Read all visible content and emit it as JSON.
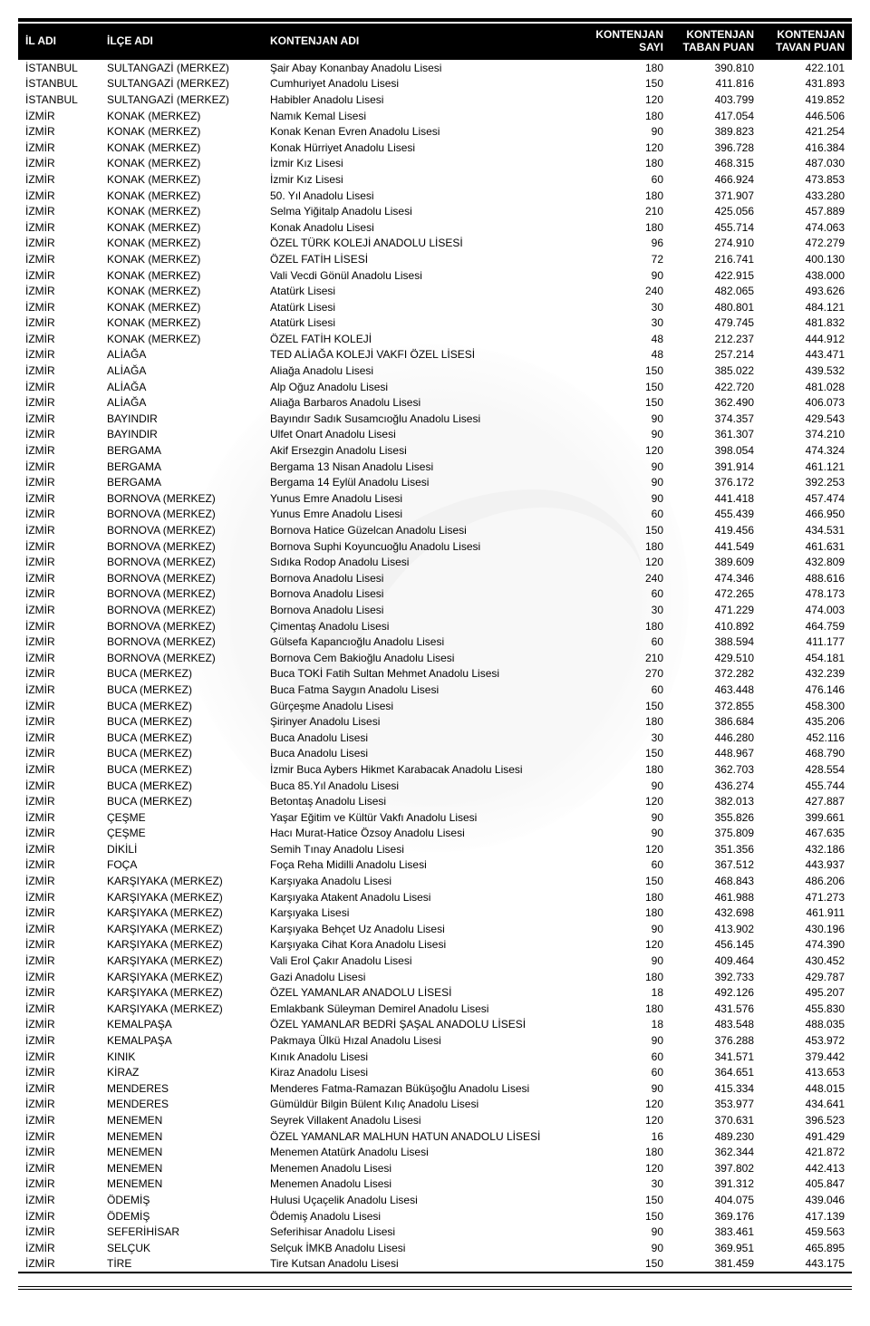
{
  "columns": {
    "il": "İL ADI",
    "ilce": "İLÇE ADI",
    "kon": "KONTENJAN ADI",
    "sayi": "KONTENJAN\nSAYI",
    "taban": "KONTENJAN\nTABAN PUAN",
    "tavan": "KONTENJAN\nTAVAN PUAN"
  },
  "rows": [
    [
      "İSTANBUL",
      "SULTANGAZİ (MERKEZ)",
      "Şair Abay Konanbay Anadolu Lisesi",
      "180",
      "390.810",
      "422.101"
    ],
    [
      "İSTANBUL",
      "SULTANGAZİ (MERKEZ)",
      "Cumhuriyet Anadolu Lisesi",
      "150",
      "411.816",
      "431.893"
    ],
    [
      "İSTANBUL",
      "SULTANGAZİ (MERKEZ)",
      "Habibler Anadolu Lisesi",
      "120",
      "403.799",
      "419.852"
    ],
    [
      "İZMİR",
      "KONAK (MERKEZ)",
      "Namık Kemal Lisesi",
      "180",
      "417.054",
      "446.506"
    ],
    [
      "İZMİR",
      "KONAK (MERKEZ)",
      "Konak Kenan Evren Anadolu Lisesi",
      "90",
      "389.823",
      "421.254"
    ],
    [
      "İZMİR",
      "KONAK (MERKEZ)",
      "Konak Hürriyet Anadolu Lisesi",
      "120",
      "396.728",
      "416.384"
    ],
    [
      "İZMİR",
      "KONAK (MERKEZ)",
      "İzmir Kız Lisesi",
      "180",
      "468.315",
      "487.030"
    ],
    [
      "İZMİR",
      "KONAK (MERKEZ)",
      "İzmir Kız Lisesi",
      "60",
      "466.924",
      "473.853"
    ],
    [
      "İZMİR",
      "KONAK (MERKEZ)",
      "50. Yıl Anadolu Lisesi",
      "180",
      "371.907",
      "433.280"
    ],
    [
      "İZMİR",
      "KONAK (MERKEZ)",
      "Selma Yiğitalp Anadolu Lisesi",
      "210",
      "425.056",
      "457.889"
    ],
    [
      "İZMİR",
      "KONAK (MERKEZ)",
      "Konak Anadolu Lisesi",
      "180",
      "455.714",
      "474.063"
    ],
    [
      "İZMİR",
      "KONAK (MERKEZ)",
      "ÖZEL TÜRK  KOLEJİ ANADOLU LİSESİ",
      "96",
      "274.910",
      "472.279"
    ],
    [
      "İZMİR",
      "KONAK (MERKEZ)",
      "ÖZEL  FATİH LİSESİ",
      "72",
      "216.741",
      "400.130"
    ],
    [
      "İZMİR",
      "KONAK (MERKEZ)",
      "Vali Vecdi Gönül Anadolu Lisesi",
      "90",
      "422.915",
      "438.000"
    ],
    [
      "İZMİR",
      "KONAK (MERKEZ)",
      "Atatürk Lisesi",
      "240",
      "482.065",
      "493.626"
    ],
    [
      "İZMİR",
      "KONAK (MERKEZ)",
      "Atatürk Lisesi",
      "30",
      "480.801",
      "484.121"
    ],
    [
      "İZMİR",
      "KONAK (MERKEZ)",
      "Atatürk Lisesi",
      "30",
      "479.745",
      "481.832"
    ],
    [
      "İZMİR",
      "KONAK (MERKEZ)",
      "ÖZEL FATİH KOLEJİ",
      "48",
      "212.237",
      "444.912"
    ],
    [
      "İZMİR",
      "ALİAĞA",
      "TED ALİAĞA KOLEJİ VAKFI ÖZEL LİSESİ",
      "48",
      "257.214",
      "443.471"
    ],
    [
      "İZMİR",
      "ALİAĞA",
      "Aliağa Anadolu Lisesi",
      "150",
      "385.022",
      "439.532"
    ],
    [
      "İZMİR",
      "ALİAĞA",
      "Alp Oğuz Anadolu Lisesi",
      "150",
      "422.720",
      "481.028"
    ],
    [
      "İZMİR",
      "ALİAĞA",
      "Aliağa Barbaros Anadolu Lisesi",
      "150",
      "362.490",
      "406.073"
    ],
    [
      "İZMİR",
      "BAYINDIR",
      "Bayındır Sadık Susamcıoğlu Anadolu Lisesi",
      "90",
      "374.357",
      "429.543"
    ],
    [
      "İZMİR",
      "BAYINDIR",
      "Ulfet Onart Anadolu Lisesi",
      "90",
      "361.307",
      "374.210"
    ],
    [
      "İZMİR",
      "BERGAMA",
      "Akif Ersezgin Anadolu Lisesi",
      "120",
      "398.054",
      "474.324"
    ],
    [
      "İZMİR",
      "BERGAMA",
      "Bergama 13 Nisan Anadolu Lisesi",
      "90",
      "391.914",
      "461.121"
    ],
    [
      "İZMİR",
      "BERGAMA",
      "Bergama 14 Eylül Anadolu Lisesi",
      "90",
      "376.172",
      "392.253"
    ],
    [
      "İZMİR",
      "BORNOVA (MERKEZ)",
      "Yunus Emre Anadolu Lisesi",
      "90",
      "441.418",
      "457.474"
    ],
    [
      "İZMİR",
      "BORNOVA (MERKEZ)",
      "Yunus Emre Anadolu Lisesi",
      "60",
      "455.439",
      "466.950"
    ],
    [
      "İZMİR",
      "BORNOVA (MERKEZ)",
      "Bornova Hatice Güzelcan Anadolu Lisesi",
      "150",
      "419.456",
      "434.531"
    ],
    [
      "İZMİR",
      "BORNOVA (MERKEZ)",
      "Bornova Suphi Koyuncuoğlu Anadolu Lisesi",
      "180",
      "441.549",
      "461.631"
    ],
    [
      "İZMİR",
      "BORNOVA (MERKEZ)",
      "Sıdıka Rodop Anadolu Lisesi",
      "120",
      "389.609",
      "432.809"
    ],
    [
      "İZMİR",
      "BORNOVA (MERKEZ)",
      "Bornova Anadolu Lisesi",
      "240",
      "474.346",
      "488.616"
    ],
    [
      "İZMİR",
      "BORNOVA (MERKEZ)",
      "Bornova Anadolu Lisesi",
      "60",
      "472.265",
      "478.173"
    ],
    [
      "İZMİR",
      "BORNOVA (MERKEZ)",
      "Bornova Anadolu Lisesi",
      "30",
      "471.229",
      "474.003"
    ],
    [
      "İZMİR",
      "BORNOVA (MERKEZ)",
      "Çimentaş Anadolu Lisesi",
      "180",
      "410.892",
      "464.759"
    ],
    [
      "İZMİR",
      "BORNOVA (MERKEZ)",
      "Gülsefa Kapancıoğlu Anadolu Lisesi",
      "60",
      "388.594",
      "411.177"
    ],
    [
      "İZMİR",
      "BORNOVA (MERKEZ)",
      "Bornova Cem Bakioğlu Anadolu Lisesi",
      "210",
      "429.510",
      "454.181"
    ],
    [
      "İZMİR",
      "BUCA (MERKEZ)",
      "Buca TOKİ Fatih Sultan Mehmet Anadolu Lisesi",
      "270",
      "372.282",
      "432.239"
    ],
    [
      "İZMİR",
      "BUCA (MERKEZ)",
      "Buca Fatma Saygın Anadolu Lisesi",
      "60",
      "463.448",
      "476.146"
    ],
    [
      "İZMİR",
      "BUCA (MERKEZ)",
      "Gürçeşme Anadolu Lisesi",
      "150",
      "372.855",
      "458.300"
    ],
    [
      "İZMİR",
      "BUCA (MERKEZ)",
      "Şirinyer Anadolu Lisesi",
      "180",
      "386.684",
      "435.206"
    ],
    [
      "İZMİR",
      "BUCA (MERKEZ)",
      "Buca Anadolu Lisesi",
      "30",
      "446.280",
      "452.116"
    ],
    [
      "İZMİR",
      "BUCA (MERKEZ)",
      "Buca Anadolu Lisesi",
      "150",
      "448.967",
      "468.790"
    ],
    [
      "İZMİR",
      "BUCA (MERKEZ)",
      "İzmir Buca Aybers Hikmet Karabacak Anadolu Lisesi",
      "180",
      "362.703",
      "428.554"
    ],
    [
      "İZMİR",
      "BUCA (MERKEZ)",
      "Buca 85.Yıl Anadolu Lisesi",
      "90",
      "436.274",
      "455.744"
    ],
    [
      "İZMİR",
      "BUCA (MERKEZ)",
      "Betontaş Anadolu Lisesi",
      "120",
      "382.013",
      "427.887"
    ],
    [
      "İZMİR",
      "ÇEŞME",
      "Yaşar Eğitim ve Kültür Vakfı Anadolu Lisesi",
      "90",
      "355.826",
      "399.661"
    ],
    [
      "İZMİR",
      "ÇEŞME",
      "Hacı Murat-Hatice Özsoy Anadolu Lisesi",
      "90",
      "375.809",
      "467.635"
    ],
    [
      "İZMİR",
      "DİKİLİ",
      "Semih Tınay Anadolu Lisesi",
      "120",
      "351.356",
      "432.186"
    ],
    [
      "İZMİR",
      "FOÇA",
      "Foça Reha Midilli Anadolu Lisesi",
      "60",
      "367.512",
      "443.937"
    ],
    [
      "İZMİR",
      "KARŞIYAKA (MERKEZ)",
      "Karşıyaka Anadolu Lisesi",
      "150",
      "468.843",
      "486.206"
    ],
    [
      "İZMİR",
      "KARŞIYAKA (MERKEZ)",
      "Karşıyaka Atakent Anadolu Lisesi",
      "180",
      "461.988",
      "471.273"
    ],
    [
      "İZMİR",
      "KARŞIYAKA (MERKEZ)",
      "Karşıyaka Lisesi",
      "180",
      "432.698",
      "461.911"
    ],
    [
      "İZMİR",
      "KARŞIYAKA (MERKEZ)",
      "Karşıyaka Behçet Uz Anadolu Lisesi",
      "90",
      "413.902",
      "430.196"
    ],
    [
      "İZMİR",
      "KARŞIYAKA (MERKEZ)",
      "Karşıyaka Cihat Kora Anadolu Lisesi",
      "120",
      "456.145",
      "474.390"
    ],
    [
      "İZMİR",
      "KARŞIYAKA (MERKEZ)",
      "Vali Erol Çakır Anadolu Lisesi",
      "90",
      "409.464",
      "430.452"
    ],
    [
      "İZMİR",
      "KARŞIYAKA (MERKEZ)",
      "Gazi Anadolu Lisesi",
      "180",
      "392.733",
      "429.787"
    ],
    [
      "İZMİR",
      "KARŞIYAKA (MERKEZ)",
      "ÖZEL YAMANLAR ANADOLU LİSESİ",
      "18",
      "492.126",
      "495.207"
    ],
    [
      "İZMİR",
      "KARŞIYAKA (MERKEZ)",
      "Emlakbank Süleyman Demirel Anadolu Lisesi",
      "180",
      "431.576",
      "455.830"
    ],
    [
      "İZMİR",
      "KEMALPAŞA",
      "ÖZEL YAMANLAR BEDRİ ŞAŞAL ANADOLU LİSESİ",
      "18",
      "483.548",
      "488.035"
    ],
    [
      "İZMİR",
      "KEMALPAŞA",
      "Pakmaya Ülkü Hızal Anadolu Lisesi",
      "90",
      "376.288",
      "453.972"
    ],
    [
      "İZMİR",
      "KINIK",
      "Kınık Anadolu Lisesi",
      "60",
      "341.571",
      "379.442"
    ],
    [
      "İZMİR",
      "KİRAZ",
      "Kiraz Anadolu Lisesi",
      "60",
      "364.651",
      "413.653"
    ],
    [
      "İZMİR",
      "MENDERES",
      "Menderes Fatma-Ramazan Büküşoğlu Anadolu Lisesi",
      "90",
      "415.334",
      "448.015"
    ],
    [
      "İZMİR",
      "MENDERES",
      "Gümüldür Bilgin Bülent Kılıç Anadolu Lisesi",
      "120",
      "353.977",
      "434.641"
    ],
    [
      "İZMİR",
      "MENEMEN",
      "Seyrek Villakent Anadolu Lisesi",
      "120",
      "370.631",
      "396.523"
    ],
    [
      "İZMİR",
      "MENEMEN",
      "ÖZEL YAMANLAR MALHUN HATUN ANADOLU LİSESİ",
      "16",
      "489.230",
      "491.429"
    ],
    [
      "İZMİR",
      "MENEMEN",
      "Menemen Atatürk Anadolu Lisesi",
      "180",
      "362.344",
      "421.872"
    ],
    [
      "İZMİR",
      "MENEMEN",
      "Menemen Anadolu Lisesi",
      "120",
      "397.802",
      "442.413"
    ],
    [
      "İZMİR",
      "MENEMEN",
      "Menemen Anadolu Lisesi",
      "30",
      "391.312",
      "405.847"
    ],
    [
      "İZMİR",
      "ÖDEMİŞ",
      "Hulusi Uçaçelik Anadolu Lisesi",
      "150",
      "404.075",
      "439.046"
    ],
    [
      "İZMİR",
      "ÖDEMİŞ",
      "Ödemiş Anadolu Lisesi",
      "150",
      "369.176",
      "417.139"
    ],
    [
      "İZMİR",
      "SEFERİHİSAR",
      "Seferihisar Anadolu Lisesi",
      "90",
      "383.461",
      "459.563"
    ],
    [
      "İZMİR",
      "SELÇUK",
      "Selçuk İMKB Anadolu Lisesi",
      "90",
      "369.951",
      "465.895"
    ],
    [
      "İZMİR",
      "TİRE",
      "Tire Kutsan Anadolu Lisesi",
      "150",
      "381.459",
      "443.175"
    ]
  ]
}
